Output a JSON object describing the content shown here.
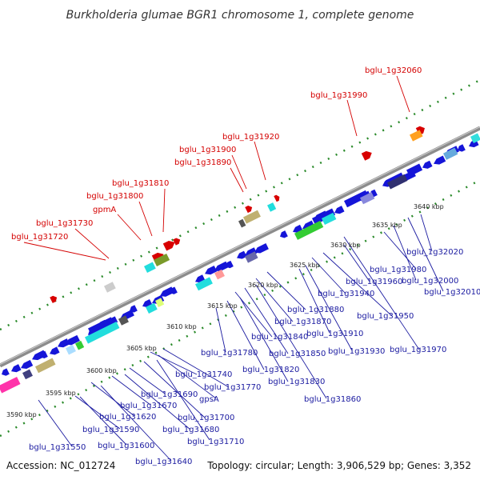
{
  "title": "Burkholderia glumae BGR1 chromosome 1, complete genome",
  "footer": {
    "accession": "Accession: NC_012724",
    "summary": "Topology: circular; Length: 3,906,529 bp; Genes: 3,352"
  },
  "colors": {
    "backbone": "#8c8c8c",
    "forward_arrow": "#d80000",
    "reverse_arrow": "#1515d8",
    "label_forward": "#d40000",
    "label_reverse": "#1a1aa0",
    "dots": "#2a8a2a"
  },
  "ticks": [
    "3590 kbp",
    "3595 kbp",
    "3600 kbp",
    "3605 kbp",
    "3610 kbp",
    "3615 kbp",
    "3620 kbp",
    "3625 kbp",
    "3630 kbp",
    "3635 kbp",
    "3640 kbp"
  ],
  "labels_forward": [
    "bglu_1g31720",
    "bglu_1g31730",
    "gpmA",
    "bglu_1g31800",
    "bglu_1g31810",
    "bglu_1g31890",
    "bglu_1g31900",
    "bglu_1g31920",
    "bglu_1g31990",
    "bglu_1g32060"
  ],
  "labels_reverse": [
    "bglu_1g31550",
    "bglu_1g31590",
    "bglu_1g31600",
    "bglu_1g31620",
    "bglu_1g31640",
    "bglu_1g31670",
    "bglu_1g31680",
    "bglu_1g31690",
    "bglu_1g31700",
    "bglu_1g31710",
    "gpsA",
    "bglu_1g31740",
    "bglu_1g31770",
    "bglu_1g31780",
    "bglu_1g31820",
    "bglu_1g31830",
    "bglu_1g31840",
    "bglu_1g31850",
    "bglu_1g31860",
    "bglu_1g31870",
    "bglu_1g31880",
    "bglu_1g31910",
    "bglu_1g31930",
    "bglu_1g31940",
    "bglu_1g31950",
    "bglu_1g31960",
    "bglu_1g31970",
    "bglu_1g31980",
    "bglu_1g32000",
    "bglu_1g32010",
    "bglu_1g32020"
  ]
}
